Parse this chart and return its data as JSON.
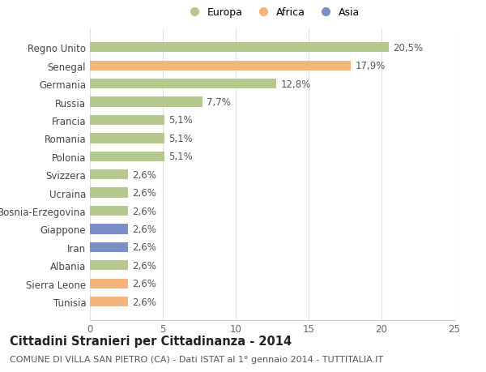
{
  "categories": [
    "Tunisia",
    "Sierra Leone",
    "Albania",
    "Iran",
    "Giappone",
    "Bosnia-Erzegovina",
    "Ucraina",
    "Svizzera",
    "Polonia",
    "Romania",
    "Francia",
    "Russia",
    "Germania",
    "Senegal",
    "Regno Unito"
  ],
  "values": [
    2.6,
    2.6,
    2.6,
    2.6,
    2.6,
    2.6,
    2.6,
    2.6,
    5.1,
    5.1,
    5.1,
    7.7,
    12.8,
    17.9,
    20.5
  ],
  "colors": [
    "#f5b57a",
    "#f5b57a",
    "#b5c98e",
    "#7b8fc7",
    "#7b8fc7",
    "#b5c98e",
    "#b5c98e",
    "#b5c98e",
    "#b5c98e",
    "#b5c98e",
    "#b5c98e",
    "#b5c98e",
    "#b5c98e",
    "#f5b57a",
    "#b5c98e"
  ],
  "labels": [
    "2,6%",
    "2,6%",
    "2,6%",
    "2,6%",
    "2,6%",
    "2,6%",
    "2,6%",
    "2,6%",
    "5,1%",
    "5,1%",
    "5,1%",
    "7,7%",
    "12,8%",
    "17,9%",
    "20,5%"
  ],
  "title": "Cittadini Stranieri per Cittadinanza - 2014",
  "subtitle": "COMUNE DI VILLA SAN PIETRO (CA) - Dati ISTAT al 1° gennaio 2014 - TUTTITALIA.IT",
  "xlim": [
    0,
    25
  ],
  "xticks": [
    0,
    5,
    10,
    15,
    20,
    25
  ],
  "legend_labels": [
    "Europa",
    "Africa",
    "Asia"
  ],
  "legend_colors": [
    "#b5c98e",
    "#f5b57a",
    "#7b8fc7"
  ],
  "background_color": "#ffffff",
  "grid_color": "#e0e0e0",
  "bar_height": 0.55,
  "label_fontsize": 8.5,
  "title_fontsize": 10.5,
  "subtitle_fontsize": 8
}
